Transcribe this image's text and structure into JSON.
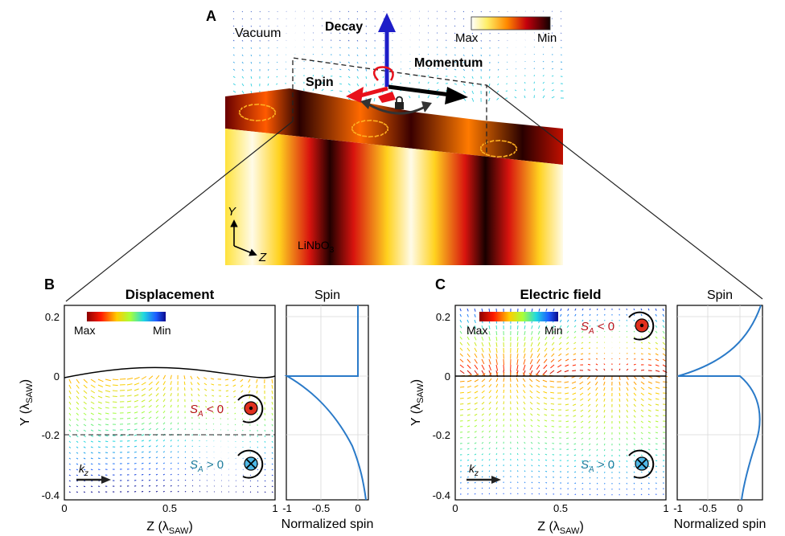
{
  "panel_a": {
    "letter": "A",
    "vacuum": "Vacuum",
    "decay": "Decay",
    "momentum": "Momentum",
    "spin": "Spin",
    "colorbar": {
      "max": "Max",
      "min": "Min"
    },
    "axis_y": "Y",
    "axis_z": "Z",
    "material": "LiNbO",
    "material_sub": "3",
    "colors": {
      "hot_dark": "#1a0000",
      "hot_red": "#c0000a",
      "hot_yellow": "#ffe23a",
      "decay_arrow": "#1e1ec8",
      "spin_red": "#e8111b"
    }
  },
  "panel_b": {
    "letter": "B",
    "title": "Displacement",
    "spin_title": "Spin",
    "colorbar": {
      "max": "Max",
      "min": "Min"
    },
    "ylabel": "Y (λ",
    "ylabel_sub": "SAW",
    "ylabel_end": ")",
    "xlabel": "Z (λ",
    "xlabel_sub": "SAW",
    "xlabel_end": ")",
    "spin_xlabel": "Normalized spin",
    "y_ticks": [
      "0.2",
      "0",
      "-0.2",
      "-0.4"
    ],
    "x_ticks": [
      "0",
      "0.5",
      "1"
    ],
    "spin_x_ticks": [
      "-1",
      "-0.5",
      "0"
    ],
    "sa_neg": "S",
    "sa_neg_sub": "A",
    "sa_neg_rel": " < 0",
    "sa_pos": "S",
    "sa_pos_sub": "A",
    "sa_pos_rel": " > 0",
    "k": "k",
    "k_sub": "z",
    "colors": {
      "neg_label": "#b7141c",
      "pos_label": "#1f7d9c"
    }
  },
  "panel_c": {
    "letter": "C",
    "title": "Electric field",
    "spin_title": "Spin",
    "colorbar": {
      "max": "Max",
      "min": "Min"
    },
    "ylabel": "Y (λ",
    "ylabel_sub": "SAW",
    "ylabel_end": ")",
    "xlabel": "Z (λ",
    "xlabel_sub": "SAW",
    "xlabel_end": ")",
    "spin_xlabel": "Normalized spin",
    "y_ticks": [
      "0.2",
      "0",
      "-0.2",
      "-0.4"
    ],
    "x_ticks": [
      "0",
      "0.5",
      "1"
    ],
    "spin_x_ticks": [
      "-1",
      "-0.5",
      "0"
    ],
    "sa_neg": "S",
    "sa_neg_sub": "A",
    "sa_neg_rel": " < 0",
    "sa_pos": "S",
    "sa_pos_sub": "A",
    "sa_pos_rel": " > 0",
    "k": "k",
    "k_sub": "z",
    "colors": {
      "neg_label": "#b7141c",
      "pos_label": "#1f7d9c"
    }
  },
  "spin_line_color": "#2a7ac8"
}
